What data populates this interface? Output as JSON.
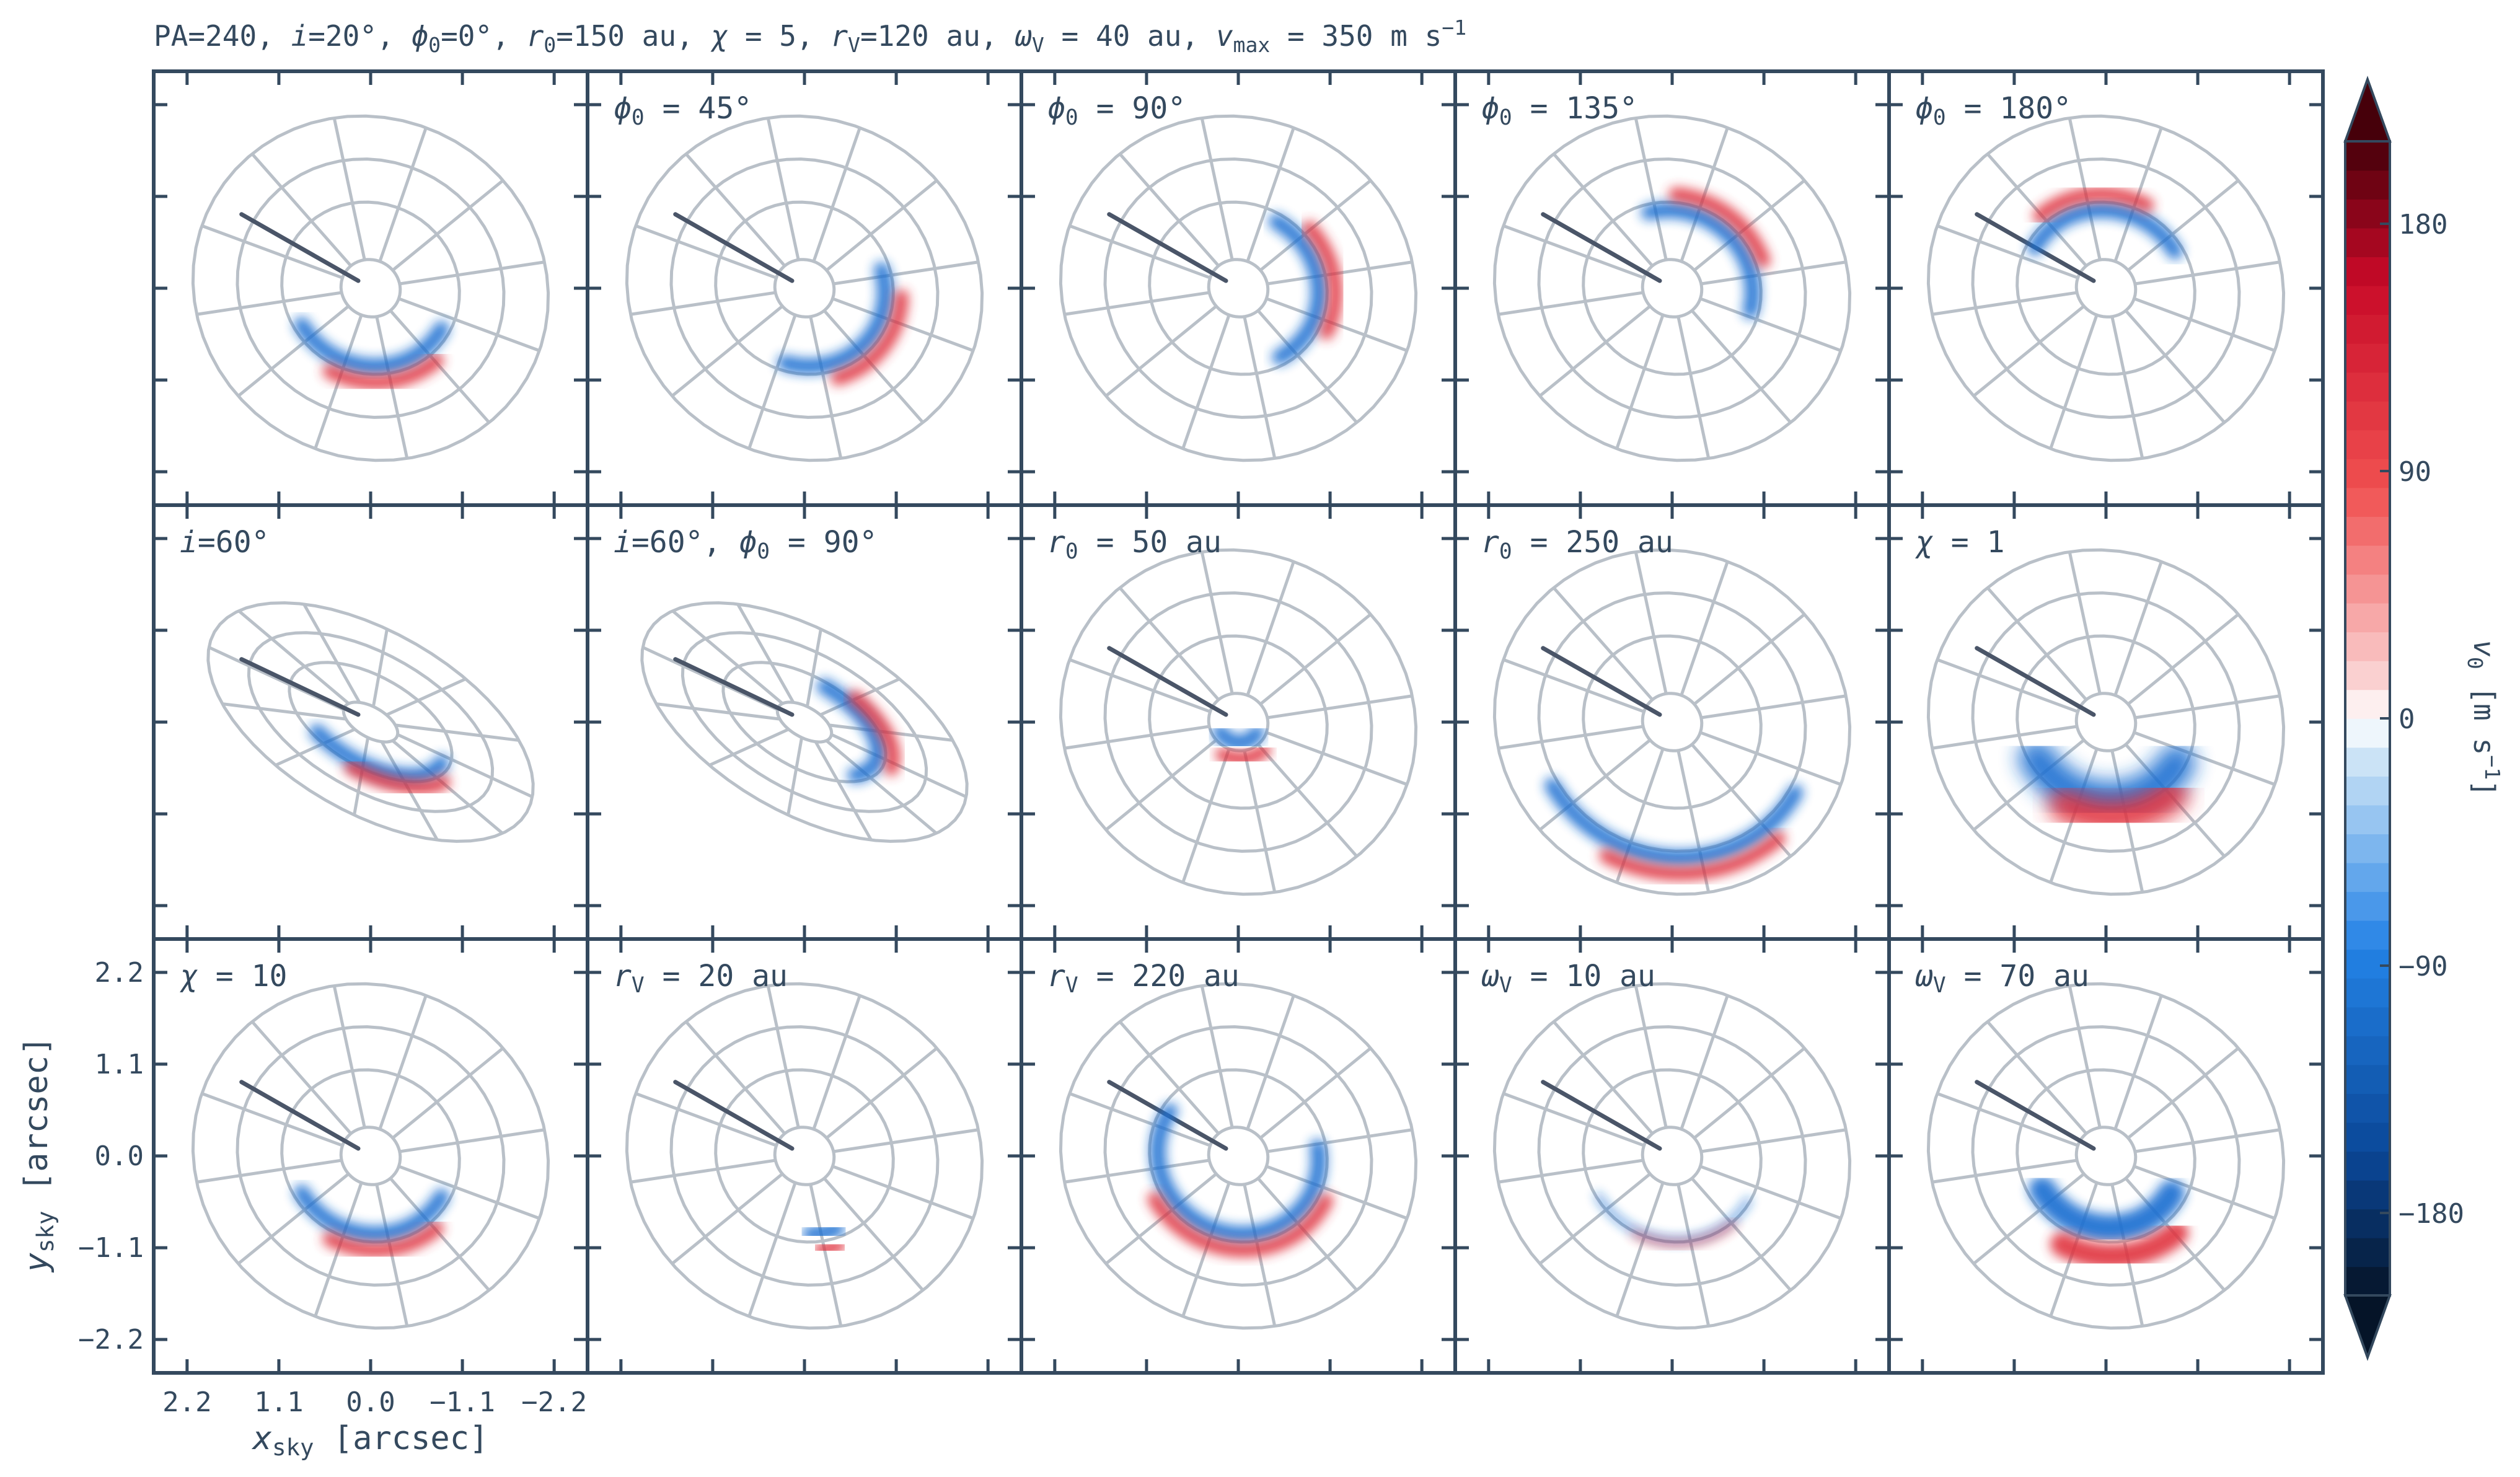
{
  "colors": {
    "frame": "#34495e",
    "grid": "#b9c0c8",
    "sink": "#4a5568",
    "negative": "#1f6fd1",
    "positive": "#e0323c"
  },
  "figure": {
    "title_parts": [
      {
        "t": "PA=240, "
      },
      {
        "t": "i",
        "it": true
      },
      {
        "t": "=20°, "
      },
      {
        "t": "ϕ",
        "it": true
      },
      {
        "t": "0",
        "sub": true
      },
      {
        "t": "=0°, "
      },
      {
        "t": "r",
        "it": true
      },
      {
        "t": "0",
        "sub": true
      },
      {
        "t": "=150 au, "
      },
      {
        "t": "χ",
        "it": true
      },
      {
        "t": " = 5, "
      },
      {
        "t": "r",
        "it": true
      },
      {
        "t": "V",
        "sub": true
      },
      {
        "t": "=120 au, "
      },
      {
        "t": "ω",
        "it": true
      },
      {
        "t": "V",
        "sub": true
      },
      {
        "t": " = 40 au, "
      },
      {
        "t": "v",
        "it": true
      },
      {
        "t": "max",
        "sub": true
      },
      {
        "t": " = 350 m s"
      },
      {
        "t": "−1",
        "sup": true
      }
    ]
  },
  "chart_data": {
    "type": "heatmap",
    "layout": {
      "rows": 3,
      "cols": 5
    },
    "x_axis": {
      "label_parts": [
        {
          "t": "x",
          "it": true
        },
        {
          "t": "sky",
          "sub": true
        },
        {
          "t": " [arcsec]"
        }
      ],
      "ticks": [
        "2.2",
        "1.1",
        "0.0",
        "−1.1",
        "−2.2"
      ],
      "tick_values": [
        2.2,
        1.1,
        0.0,
        -1.1,
        -2.2
      ],
      "range": [
        2.6,
        -2.6
      ],
      "inverted": true
    },
    "y_axis": {
      "label_parts": [
        {
          "t": "y",
          "it": true
        },
        {
          "t": "sky",
          "sub": true
        },
        {
          "t": " [arcsec]"
        }
      ],
      "ticks": [
        "2.2",
        "1.1",
        "0.0",
        "−1.1",
        "−2.2"
      ],
      "tick_values": [
        2.2,
        1.1,
        0.0,
        -1.1,
        -2.2
      ],
      "range": [
        -2.6,
        2.6
      ]
    },
    "colorbar": {
      "label_parts": [
        {
          "t": "v",
          "it": true
        },
        {
          "t": "0",
          "sub": true
        },
        {
          "t": " [m s"
        },
        {
          "t": "−1",
          "sup": true
        },
        {
          "t": "]"
        }
      ],
      "ticks": [
        "180",
        "90",
        "0",
        "−90",
        "−180"
      ],
      "tick_values": [
        180,
        90,
        0,
        -90,
        -180
      ],
      "range": [
        -210,
        210
      ],
      "colormap": "RdBu_r",
      "extend": "both"
    },
    "panels": [
      {
        "label": [],
        "inc": 20,
        "r0": 150,
        "chi": 5,
        "rV": 120,
        "wV": 40,
        "phi0": 0
      },
      {
        "label": [
          {
            "t": "ϕ",
            "it": true
          },
          {
            "t": "0",
            "sub": true
          },
          {
            "t": " = 45°"
          }
        ],
        "inc": 20,
        "r0": 150,
        "chi": 5,
        "rV": 120,
        "wV": 40,
        "phi0": 45
      },
      {
        "label": [
          {
            "t": "ϕ",
            "it": true
          },
          {
            "t": "0",
            "sub": true
          },
          {
            "t": " = 90°"
          }
        ],
        "inc": 20,
        "r0": 150,
        "chi": 5,
        "rV": 120,
        "wV": 40,
        "phi0": 90
      },
      {
        "label": [
          {
            "t": "ϕ",
            "it": true
          },
          {
            "t": "0",
            "sub": true
          },
          {
            "t": " = 135°"
          }
        ],
        "inc": 20,
        "r0": 150,
        "chi": 5,
        "rV": 120,
        "wV": 40,
        "phi0": 135
      },
      {
        "label": [
          {
            "t": "ϕ",
            "it": true
          },
          {
            "t": "0",
            "sub": true
          },
          {
            "t": " = 180°"
          }
        ],
        "inc": 20,
        "r0": 150,
        "chi": 5,
        "rV": 120,
        "wV": 40,
        "phi0": 180
      },
      {
        "label": [
          {
            "t": "i",
            "it": true
          },
          {
            "t": "=60°"
          }
        ],
        "inc": 60,
        "r0": 150,
        "chi": 5,
        "rV": 120,
        "wV": 40,
        "phi0": 0
      },
      {
        "label": [
          {
            "t": "i",
            "it": true
          },
          {
            "t": "=60°, "
          },
          {
            "t": "ϕ",
            "it": true
          },
          {
            "t": "0",
            "sub": true
          },
          {
            "t": " = 90°"
          }
        ],
        "inc": 60,
        "r0": 150,
        "chi": 5,
        "rV": 120,
        "wV": 40,
        "phi0": 90
      },
      {
        "label": [
          {
            "t": "r",
            "it": true
          },
          {
            "t": "0",
            "sub": true
          },
          {
            "t": " = 50 au"
          }
        ],
        "inc": 20,
        "r0": 50,
        "chi": 5,
        "rV": 120,
        "wV": 40,
        "phi0": 0
      },
      {
        "label": [
          {
            "t": "r",
            "it": true
          },
          {
            "t": "0",
            "sub": true
          },
          {
            "t": " = 250 au"
          }
        ],
        "inc": 20,
        "r0": 250,
        "chi": 5,
        "rV": 120,
        "wV": 40,
        "phi0": 0
      },
      {
        "label": [
          {
            "t": "χ",
            "it": true
          },
          {
            "t": " = 1"
          }
        ],
        "inc": 20,
        "r0": 150,
        "chi": 1,
        "rV": 120,
        "wV": 40,
        "phi0": 0
      },
      {
        "label": [
          {
            "t": "χ",
            "it": true
          },
          {
            "t": " = 10"
          }
        ],
        "inc": 20,
        "r0": 150,
        "chi": 10,
        "rV": 120,
        "wV": 40,
        "phi0": 0
      },
      {
        "label": [
          {
            "t": "r",
            "it": true
          },
          {
            "t": "V",
            "sub": true
          },
          {
            "t": " = 20 au"
          }
        ],
        "inc": 20,
        "r0": 150,
        "chi": 5,
        "rV": 20,
        "wV": 40,
        "phi0": 0
      },
      {
        "label": [
          {
            "t": "r",
            "it": true
          },
          {
            "t": "V",
            "sub": true
          },
          {
            "t": " = 220 au"
          }
        ],
        "inc": 20,
        "r0": 150,
        "chi": 5,
        "rV": 220,
        "wV": 40,
        "phi0": 0
      },
      {
        "label": [
          {
            "t": "ω",
            "it": true
          },
          {
            "t": "V",
            "sub": true
          },
          {
            "t": " = 10 au"
          }
        ],
        "inc": 20,
        "r0": 150,
        "chi": 5,
        "rV": 120,
        "wV": 10,
        "phi0": 0
      },
      {
        "label": [
          {
            "t": "ω",
            "it": true
          },
          {
            "t": "V",
            "sub": true
          },
          {
            "t": " = 70 au"
          }
        ],
        "inc": 20,
        "r0": 150,
        "chi": 5,
        "rV": 120,
        "wV": 70,
        "phi0": 0
      }
    ]
  }
}
